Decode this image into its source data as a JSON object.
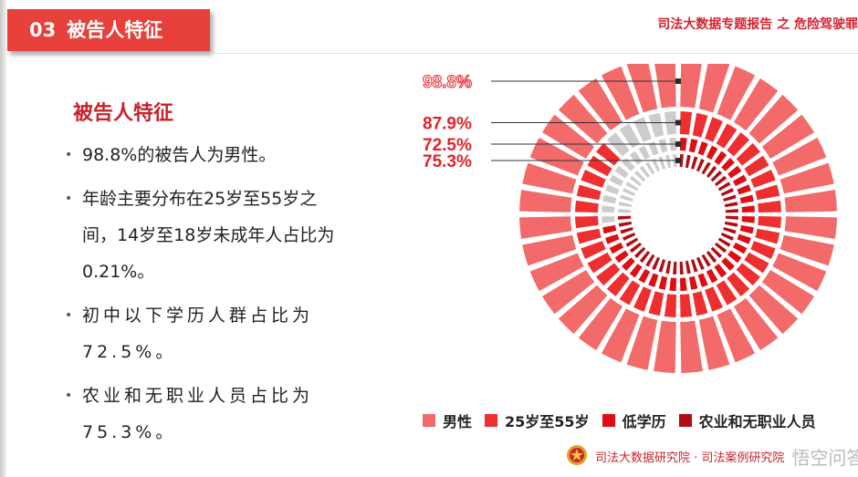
{
  "header": {
    "section_number": "03",
    "section_title": "被告人特征",
    "report_title": "司法大数据专题报告 之 危险驾驶罪"
  },
  "content": {
    "heading": "被告人特征",
    "bullets": [
      "98.8%的被告人为男性。",
      "年龄主要分布在25岁至55岁之间，14岁至18岁未成年人占比为0.21%。",
      "初中以下学历人群占比为72.5%。",
      "农业和无职业人员占比为75.3%。"
    ]
  },
  "chart_data": {
    "type": "radial_bar",
    "series": [
      {
        "name": "男性",
        "value": 98.8,
        "label": "98.8%",
        "color": "#f26a6a"
      },
      {
        "name": "25岁至55岁",
        "value": 87.9,
        "label": "87.9%",
        "color": "#ee2f2f"
      },
      {
        "name": "低学历",
        "value": 72.5,
        "label": "72.5%",
        "color": "#dc0f14"
      },
      {
        "name": "农业和无职业人员",
        "value": 75.3,
        "label": "75.3%",
        "color": "#b00d12"
      }
    ],
    "remainder_color": "#cccccc",
    "label_color": "#e32129",
    "legend_position": "bottom"
  },
  "footer": {
    "org_text": "司法大数据研究院 · 司法案例研究院",
    "watermark": "悟空问答"
  }
}
